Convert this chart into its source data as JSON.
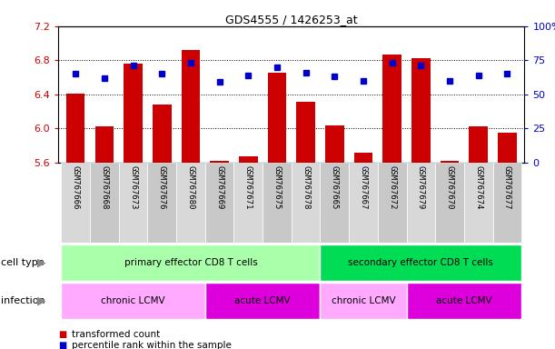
{
  "title": "GDS4555 / 1426253_at",
  "samples": [
    "GSM767666",
    "GSM767668",
    "GSM767673",
    "GSM767676",
    "GSM767680",
    "GSM767669",
    "GSM767671",
    "GSM767675",
    "GSM767678",
    "GSM767665",
    "GSM767667",
    "GSM767672",
    "GSM767679",
    "GSM767670",
    "GSM767674",
    "GSM767677"
  ],
  "red_values": [
    6.41,
    6.02,
    6.76,
    6.28,
    6.92,
    5.62,
    5.67,
    6.65,
    6.31,
    6.03,
    5.71,
    6.87,
    6.82,
    5.62,
    6.02,
    5.95
  ],
  "blue_pct": [
    65,
    62,
    71,
    65,
    73,
    59,
    64,
    70,
    66,
    63,
    60,
    73,
    71,
    60,
    64,
    65
  ],
  "ylim_left": [
    5.6,
    7.2
  ],
  "ylim_right": [
    0,
    100
  ],
  "yticks_left": [
    5.6,
    6.0,
    6.4,
    6.8,
    7.2
  ],
  "yticks_right": [
    0,
    25,
    50,
    75,
    100
  ],
  "ytick_labels_right": [
    "0",
    "25",
    "50",
    "75",
    "100%"
  ],
  "red_color": "#cc0000",
  "blue_color": "#0000cc",
  "bar_baseline": 5.6,
  "grid_yticks": [
    6.0,
    6.4,
    6.8
  ],
  "cell_type_groups": [
    {
      "label": "primary effector CD8 T cells",
      "start": 0,
      "end": 9,
      "color": "#aaffaa"
    },
    {
      "label": "secondary effector CD8 T cells",
      "start": 9,
      "end": 16,
      "color": "#00dd55"
    }
  ],
  "infection_groups": [
    {
      "label": "chronic LCMV",
      "start": 0,
      "end": 5,
      "color": "#ffaaff"
    },
    {
      "label": "acute LCMV",
      "start": 5,
      "end": 9,
      "color": "#dd00dd"
    },
    {
      "label": "chronic LCMV",
      "start": 9,
      "end": 12,
      "color": "#ffaaff"
    },
    {
      "label": "acute LCMV",
      "start": 12,
      "end": 16,
      "color": "#dd00dd"
    }
  ],
  "legend_red": "transformed count",
  "legend_blue": "percentile rank within the sample",
  "cell_type_label": "cell type",
  "infection_label": "infection",
  "bg_color": "#ffffff",
  "label_color": "#888888",
  "box_color_even": "#d8d8d8",
  "box_color_odd": "#c8c8c8"
}
